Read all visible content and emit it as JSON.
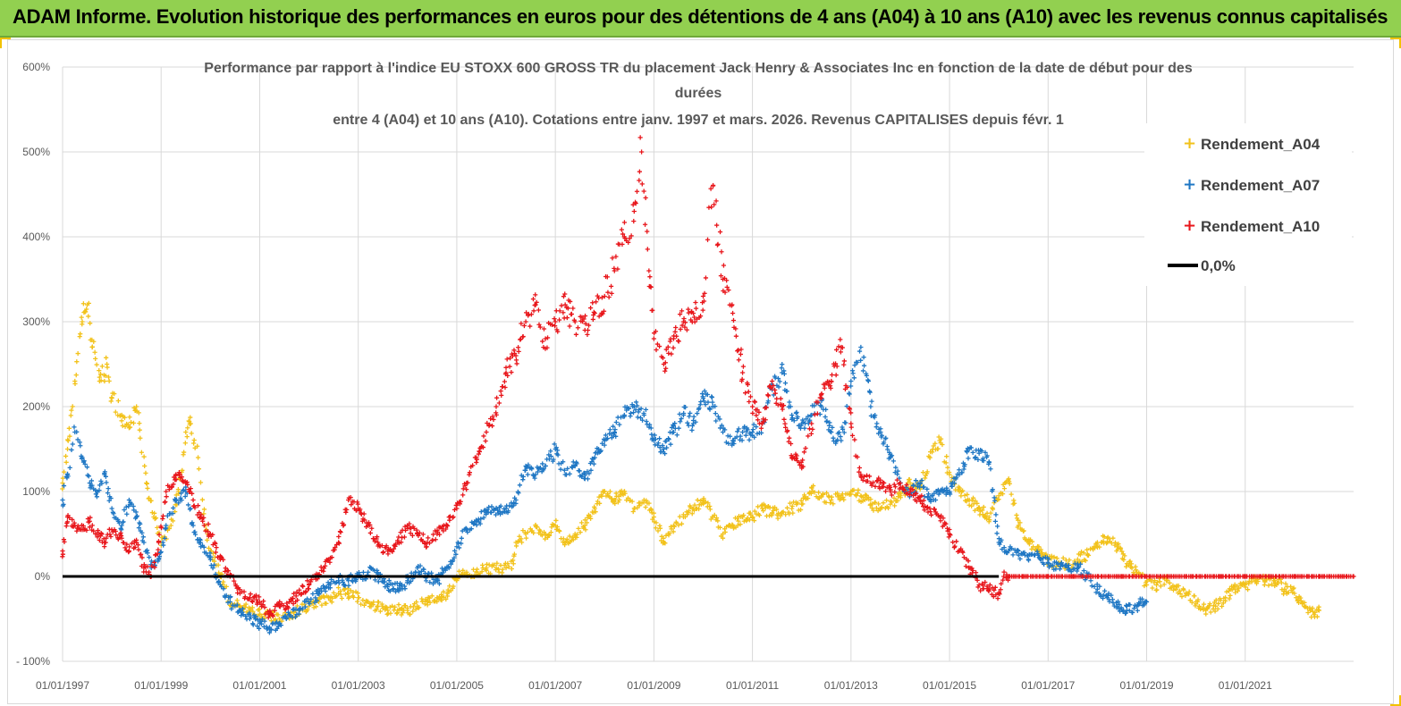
{
  "banner": {
    "text": "ADAM Informe. Evolution historique des performances en euros pour des détentions de 4 ans (A04) à 10 ans (A10) avec les revenus connus capitalisés"
  },
  "colors": {
    "banner_bg": "#92d050",
    "a04": "#f2c21b",
    "a07": "#1f77c4",
    "a10": "#e8161b",
    "zero_line": "#000000",
    "grid": "#d9d9d9"
  },
  "chart_data": {
    "type": "scatter",
    "title_lines": [
      "Performance par rapport à l'indice EU STOXX 600 GROSS TR  du placement Jack Henry & Associates Inc en fonction de la date de début pour des",
      "durées",
      "entre 4 (A04) et 10 ans (A10).  Cotations entre janv. 1997 et mars. 2026. Revenus CAPITALISES depuis févr. 1"
    ],
    "x_range": [
      1997.0,
      2023.2
    ],
    "ylim": [
      -100,
      600
    ],
    "y_ticks": [
      -100,
      0,
      100,
      200,
      300,
      400,
      500,
      600
    ],
    "y_tick_labels": [
      "- 100%",
      "0%",
      "100%",
      "200%",
      "300%",
      "400%",
      "500%",
      "600%"
    ],
    "x_ticks": [
      1997,
      1999,
      2001,
      2003,
      2005,
      2007,
      2009,
      2011,
      2013,
      2015,
      2017,
      2019,
      2021
    ],
    "x_tick_labels": [
      "01/01/1997",
      "01/01/1999",
      "01/01/2001",
      "01/01/2003",
      "01/01/2005",
      "01/01/2007",
      "01/01/2009",
      "01/01/2011",
      "01/01/2013",
      "01/01/2015",
      "01/01/2017",
      "01/01/2019",
      "01/01/2021"
    ],
    "legend": [
      "Rendement_A04",
      "Rendement_A07",
      "Rendement_A10",
      "0,0%"
    ],
    "legend_position": "top-right",
    "series": [
      {
        "name": "Rendement_A04",
        "marker": "+",
        "x": [
          1997.0,
          1997.1,
          1997.25,
          1997.4,
          1997.5,
          1997.6,
          1997.75,
          1997.9,
          1998.0,
          1998.2,
          1998.35,
          1998.5,
          1998.7,
          1998.85,
          1999.0,
          1999.2,
          1999.35,
          1999.5,
          1999.6,
          1999.75,
          1999.9,
          2000.0,
          2000.2,
          2000.4,
          2000.6,
          2000.8,
          2001.0,
          2001.2,
          2001.4,
          2001.6,
          2001.8,
          2002.0,
          2002.2,
          2002.4,
          2002.6,
          2002.8,
          2003.0,
          2003.2,
          2003.4,
          2003.6,
          2003.8,
          2004.0,
          2004.2,
          2004.4,
          2004.6,
          2004.8,
          2005.0,
          2005.2,
          2005.4,
          2005.6,
          2005.8,
          2006.0,
          2006.15,
          2006.2,
          2006.4,
          2006.6,
          2006.8,
          2007.0,
          2007.2,
          2007.4,
          2007.6,
          2007.8,
          2008.0,
          2008.2,
          2008.4,
          2008.6,
          2008.8,
          2009.0,
          2009.2,
          2009.4,
          2009.6,
          2009.8,
          2010.0,
          2010.2,
          2010.4,
          2010.6,
          2010.8,
          2011.0,
          2011.2,
          2011.4,
          2011.6,
          2011.8,
          2012.0,
          2012.2,
          2012.4,
          2012.6,
          2012.8,
          2013.0,
          2013.2,
          2013.4,
          2013.6,
          2013.8,
          2014.0,
          2014.2,
          2014.4,
          2014.6,
          2014.8,
          2015.0,
          2015.2,
          2015.4,
          2015.6,
          2015.8,
          2016.0,
          2016.2,
          2016.4,
          2016.6,
          2016.8,
          2017.0,
          2017.2,
          2017.4,
          2017.6,
          2017.8,
          2018.0,
          2018.2,
          2018.4,
          2018.6,
          2018.8,
          2019.0,
          2019.2,
          2019.4,
          2019.6,
          2019.8,
          2020.0,
          2020.2,
          2020.4,
          2020.6,
          2020.8,
          2021.0,
          2021.2,
          2021.4,
          2021.6,
          2021.8,
          2022.0,
          2022.2,
          2022.4,
          2022.5
        ],
        "y": [
          110,
          150,
          230,
          300,
          320,
          270,
          230,
          250,
          210,
          190,
          175,
          200,
          110,
          70,
          40,
          60,
          100,
          170,
          180,
          140,
          60,
          30,
          0,
          -30,
          -35,
          -40,
          -45,
          -45,
          -50,
          -45,
          -40,
          -35,
          -30,
          -25,
          -20,
          -20,
          -25,
          -30,
          -35,
          -40,
          -40,
          -40,
          -35,
          -30,
          -25,
          -20,
          0,
          5,
          5,
          10,
          10,
          10,
          15,
          40,
          50,
          60,
          50,
          60,
          40,
          50,
          60,
          80,
          100,
          90,
          100,
          80,
          90,
          70,
          40,
          60,
          70,
          80,
          90,
          70,
          50,
          60,
          70,
          70,
          80,
          75,
          75,
          80,
          85,
          105,
          95,
          90,
          95,
          100,
          95,
          85,
          80,
          85,
          95,
          110,
          105,
          140,
          160,
          120,
          100,
          90,
          80,
          70,
          95,
          115,
          60,
          40,
          30,
          20,
          15,
          15,
          20,
          25,
          40,
          45,
          35,
          15,
          5,
          -10,
          -10,
          -5,
          -15,
          -20,
          -30,
          -40,
          -35,
          -25,
          -15,
          -10,
          -5,
          -5,
          -5,
          -15,
          -20,
          -35,
          -45,
          -40
        ]
      },
      {
        "name": "Rendement_A07",
        "marker": "+",
        "x": [
          1997.0,
          1997.1,
          1997.25,
          1997.4,
          1997.55,
          1997.7,
          1997.85,
          1998.0,
          1998.2,
          1998.35,
          1998.5,
          1998.65,
          1998.8,
          1998.95,
          1999.1,
          1999.3,
          1999.5,
          1999.65,
          1999.8,
          2000.0,
          2000.2,
          2000.4,
          2000.6,
          2000.8,
          2001.0,
          2001.2,
          2001.4,
          2001.6,
          2001.8,
          2002.0,
          2002.2,
          2002.4,
          2002.6,
          2002.8,
          2003.0,
          2003.2,
          2003.4,
          2003.6,
          2003.8,
          2004.0,
          2004.2,
          2004.4,
          2004.6,
          2004.8,
          2005.0,
          2005.2,
          2005.4,
          2005.6,
          2005.8,
          2006.0,
          2006.2,
          2006.4,
          2006.6,
          2006.8,
          2007.0,
          2007.2,
          2007.4,
          2007.6,
          2007.8,
          2008.0,
          2008.2,
          2008.4,
          2008.6,
          2008.8,
          2009.0,
          2009.2,
          2009.4,
          2009.6,
          2009.8,
          2010.0,
          2010.2,
          2010.4,
          2010.6,
          2010.8,
          2011.0,
          2011.2,
          2011.4,
          2011.6,
          2011.8,
          2012.0,
          2012.2,
          2012.4,
          2012.6,
          2012.8,
          2013.0,
          2013.2,
          2013.4,
          2013.6,
          2013.8,
          2014.0,
          2014.2,
          2014.4,
          2014.6,
          2014.8,
          2015.0,
          2015.2,
          2015.4,
          2015.6,
          2015.8,
          2016.0,
          2016.2,
          2016.4,
          2016.6,
          2016.8,
          2017.0,
          2017.2,
          2017.4,
          2017.6,
          2017.8,
          2018.0,
          2018.2,
          2018.4,
          2018.6,
          2018.8,
          2019.0
        ],
        "y": [
          90,
          120,
          170,
          140,
          110,
          100,
          120,
          80,
          60,
          90,
          70,
          40,
          10,
          20,
          60,
          90,
          100,
          60,
          40,
          20,
          -10,
          -30,
          -40,
          -50,
          -55,
          -60,
          -55,
          -45,
          -40,
          -30,
          -20,
          -10,
          -5,
          -5,
          0,
          5,
          0,
          -10,
          -15,
          -5,
          10,
          0,
          -5,
          10,
          35,
          55,
          65,
          75,
          80,
          80,
          90,
          130,
          120,
          130,
          150,
          120,
          130,
          115,
          140,
          160,
          170,
          190,
          200,
          190,
          160,
          150,
          170,
          190,
          180,
          210,
          200,
          170,
          160,
          170,
          170,
          180,
          220,
          240,
          190,
          180,
          190,
          200,
          170,
          160,
          230,
          270,
          200,
          170,
          140,
          110,
          100,
          110,
          90,
          100,
          100,
          120,
          150,
          145,
          135,
          40,
          30,
          25,
          20,
          25,
          15,
          15,
          10,
          10,
          0,
          -15,
          -25,
          -35,
          -40,
          -35,
          -30
        ]
      },
      {
        "name": "Rendement_A10",
        "marker": "+",
        "x": [
          1997.0,
          1997.1,
          1997.25,
          1997.4,
          1997.55,
          1997.7,
          1997.85,
          1998.0,
          1998.2,
          1998.35,
          1998.5,
          1998.65,
          1998.8,
          1998.95,
          1999.1,
          1999.3,
          1999.5,
          1999.65,
          1999.8,
          2000.0,
          2000.2,
          2000.4,
          2000.6,
          2000.8,
          2001.0,
          2001.2,
          2001.4,
          2001.6,
          2001.8,
          2002.0,
          2002.2,
          2002.4,
          2002.6,
          2002.8,
          2003.0,
          2003.2,
          2003.4,
          2003.6,
          2003.8,
          2004.0,
          2004.2,
          2004.4,
          2004.6,
          2004.8,
          2005.0,
          2005.2,
          2005.4,
          2005.6,
          2005.8,
          2006.0,
          2006.2,
          2006.4,
          2006.6,
          2006.8,
          2007.0,
          2007.2,
          2007.4,
          2007.6,
          2007.8,
          2008.0,
          2008.2,
          2008.4,
          2008.6,
          2008.75,
          2008.9,
          2009.0,
          2009.2,
          2009.4,
          2009.6,
          2009.8,
          2010.0,
          2010.2,
          2010.4,
          2010.6,
          2010.8,
          2011.0,
          2011.2,
          2011.4,
          2011.6,
          2011.8,
          2012.0,
          2012.2,
          2012.4,
          2012.6,
          2012.8,
          2013.0,
          2013.2,
          2013.4,
          2013.6,
          2013.8,
          2014.0,
          2014.2,
          2014.4,
          2014.6,
          2014.8,
          2015.0,
          2015.2,
          2015.4,
          2015.6,
          2015.8,
          2016.0,
          2016.1,
          2016.2,
          2016.5,
          2017.0,
          2017.5,
          2018.0,
          2018.5,
          2019.0,
          2019.5,
          2020.0,
          2020.5,
          2021.0,
          2021.5,
          2022.0,
          2022.5,
          2023.0,
          2023.2
        ],
        "y": [
          30,
          70,
          60,
          55,
          65,
          50,
          40,
          55,
          45,
          30,
          40,
          10,
          0,
          40,
          100,
          120,
          110,
          90,
          70,
          50,
          20,
          0,
          -20,
          -25,
          -30,
          -45,
          -35,
          -30,
          -20,
          -10,
          0,
          20,
          40,
          90,
          80,
          60,
          40,
          30,
          40,
          60,
          50,
          40,
          50,
          60,
          80,
          110,
          140,
          170,
          200,
          240,
          260,
          300,
          320,
          280,
          300,
          320,
          300,
          290,
          310,
          330,
          360,
          400,
          430,
          500,
          360,
          280,
          250,
          280,
          300,
          310,
          330,
          460,
          350,
          310,
          240,
          200,
          180,
          230,
          200,
          140,
          130,
          180,
          210,
          230,
          270,
          180,
          120,
          110,
          110,
          100,
          110,
          100,
          90,
          80,
          70,
          50,
          30,
          10,
          -10,
          -15,
          -20,
          0,
          0,
          0,
          0,
          0,
          0,
          0,
          0,
          0,
          0,
          0,
          0,
          0,
          0,
          0,
          0,
          0
        ]
      },
      {
        "name": "0,0%",
        "x": [
          1997.0,
          2016.0
        ],
        "y": [
          0,
          0
        ]
      }
    ]
  }
}
